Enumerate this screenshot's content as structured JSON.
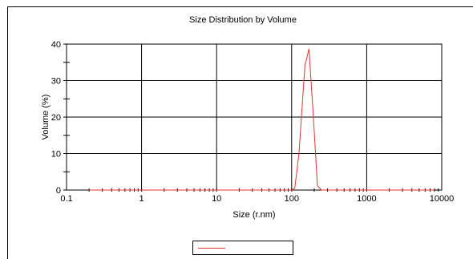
{
  "chart_data": {
    "type": "line",
    "title": "Size Distribution by Volume",
    "xlabel": "Size (r.nm)",
    "ylabel": "Volume (%)",
    "x_scale": "log",
    "xlim": [
      0.1,
      10000
    ],
    "ylim": [
      0,
      40
    ],
    "x_ticks": [
      0.1,
      1,
      10,
      100,
      1000,
      10000
    ],
    "x_tick_labels": [
      "0.1",
      "1",
      "10",
      "100",
      "1000",
      "10000"
    ],
    "y_ticks": [
      0,
      10,
      20,
      30,
      40
    ],
    "y_tick_labels": [
      "0",
      "10",
      "20",
      "30",
      "40"
    ],
    "grid": true,
    "legend_position": "bottom-center",
    "series": [
      {
        "color": "#e8352b",
        "x": [
          0.2,
          100,
          110,
          125,
          150,
          170,
          195,
          220,
          250,
          300,
          8000
        ],
        "y": [
          0,
          0,
          0.5,
          10,
          34,
          38.7,
          20,
          1.2,
          0,
          0,
          0
        ]
      }
    ]
  }
}
